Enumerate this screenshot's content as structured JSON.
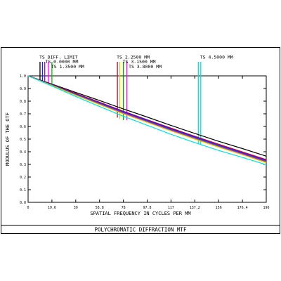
{
  "footer": {
    "caption": "POLYCHROMATIC DIFFRACTION MTF"
  },
  "chart_data": {
    "type": "line",
    "xlabel": "SPATIAL FREQUENCY IN CYCLES PER MM",
    "ylabel": "MODULUS OF THE OTF",
    "xlim": [
      0,
      196
    ],
    "ylim": [
      0,
      1.0
    ],
    "x_ticks": [
      "0",
      "19.6",
      "39",
      "58.8",
      "78",
      "97.8",
      "117",
      "137.2",
      "156",
      "176.4",
      "196"
    ],
    "y_ticks": [
      "0.0",
      "0.1",
      "0.2",
      "0.3",
      "0.4",
      "0.5",
      "0.6",
      "0.7",
      "0.8",
      "0.9",
      "1.0"
    ],
    "grid": false,
    "legend_labels": [
      {
        "text": "TS DIFF. LIMIT",
        "x": 9.8
      },
      {
        "text": "TS 0.0000 MM",
        "x": 14.7
      },
      {
        "text": "TS 1.3500 MM",
        "x": 19.6
      },
      {
        "text": "TS 2.2500 MM",
        "x": 73.5
      },
      {
        "text": "TS 3.1500 MM",
        "x": 78.4
      },
      {
        "text": "TS 3.8000 MM",
        "x": 83.3
      },
      {
        "text": "TS 4.5000 MM",
        "x": 142.1
      }
    ],
    "marker_lines": [
      {
        "x": 9.8,
        "y_bottom": 0.96,
        "color": "#000000"
      },
      {
        "x": 11.8,
        "y_bottom": 0.95,
        "color": "#1a1aff"
      },
      {
        "x": 13.7,
        "y_bottom": 0.95,
        "color": "#8b00ff"
      },
      {
        "x": 16.7,
        "y_bottom": 0.94,
        "color": "#ff00ff"
      },
      {
        "x": 19.6,
        "y_bottom": 0.94,
        "color": "#00c000"
      },
      {
        "x": 73.5,
        "y_bottom": 0.67,
        "color": "#e0001a"
      },
      {
        "x": 75.5,
        "y_bottom": 0.66,
        "color": "#d4d400"
      },
      {
        "x": 78.4,
        "y_bottom": 0.65,
        "color": "#00a000"
      },
      {
        "x": 81.3,
        "y_bottom": 0.65,
        "color": "#ff00ff"
      },
      {
        "x": 140.1,
        "y_bottom": 0.47,
        "color": "#00e0e0"
      },
      {
        "x": 142.1,
        "y_bottom": 0.46,
        "color": "#00e0e0"
      }
    ],
    "series": [
      {
        "color": "#000000",
        "x": [
          0,
          19.6,
          39,
          58.8,
          78,
          97.8,
          117,
          137.2,
          156,
          176.4,
          196
        ],
        "values": [
          1.0,
          0.935,
          0.87,
          0.805,
          0.74,
          0.675,
          0.61,
          0.545,
          0.485,
          0.425,
          0.365
        ]
      },
      {
        "color": "#e0001a",
        "x": [
          0,
          19.6,
          39,
          58.8,
          78,
          97.8,
          117,
          137.2,
          156,
          176.4,
          196
        ],
        "values": [
          1.0,
          0.932,
          0.862,
          0.792,
          0.722,
          0.654,
          0.589,
          0.523,
          0.462,
          0.399,
          0.338
        ]
      },
      {
        "color": "#1a1aff",
        "x": [
          0,
          19.6,
          39,
          58.8,
          78,
          97.8,
          117,
          137.2,
          156,
          176.4,
          196
        ],
        "values": [
          1.0,
          0.93,
          0.858,
          0.788,
          0.718,
          0.65,
          0.584,
          0.518,
          0.456,
          0.393,
          0.332
        ]
      },
      {
        "color": "#8b00ff",
        "x": [
          0,
          19.6,
          39,
          58.8,
          78,
          97.8,
          117,
          137.2,
          156,
          176.4,
          196
        ],
        "values": [
          1.0,
          0.928,
          0.855,
          0.784,
          0.713,
          0.645,
          0.578,
          0.512,
          0.451,
          0.388,
          0.327
        ]
      },
      {
        "color": "#00a000",
        "x": [
          0,
          19.6,
          39,
          58.8,
          78,
          97.8,
          117,
          137.2,
          156,
          176.4,
          196
        ],
        "values": [
          1.0,
          0.927,
          0.852,
          0.78,
          0.709,
          0.641,
          0.574,
          0.508,
          0.447,
          0.384,
          0.323
        ]
      },
      {
        "color": "#ff00ff",
        "x": [
          0,
          19.6,
          39,
          58.8,
          78,
          97.8,
          117,
          137.2,
          156,
          176.4,
          196
        ],
        "values": [
          1.0,
          0.925,
          0.849,
          0.776,
          0.705,
          0.637,
          0.57,
          0.504,
          0.443,
          0.38,
          0.318
        ]
      },
      {
        "color": "#d4d400",
        "x": [
          0,
          19.6,
          39,
          58.8,
          78,
          97.8,
          117,
          137.2,
          156,
          176.4,
          196
        ],
        "values": [
          1.0,
          0.924,
          0.847,
          0.773,
          0.701,
          0.633,
          0.566,
          0.5,
          0.439,
          0.376,
          0.314
        ]
      },
      {
        "color": "#00e0e0",
        "x": [
          0,
          19.6,
          39,
          58.8,
          78,
          97.8,
          117,
          137.2,
          156,
          176.4,
          196
        ],
        "values": [
          1.0,
          0.92,
          0.838,
          0.758,
          0.682,
          0.61,
          0.54,
          0.473,
          0.413,
          0.355,
          0.298
        ]
      }
    ]
  }
}
